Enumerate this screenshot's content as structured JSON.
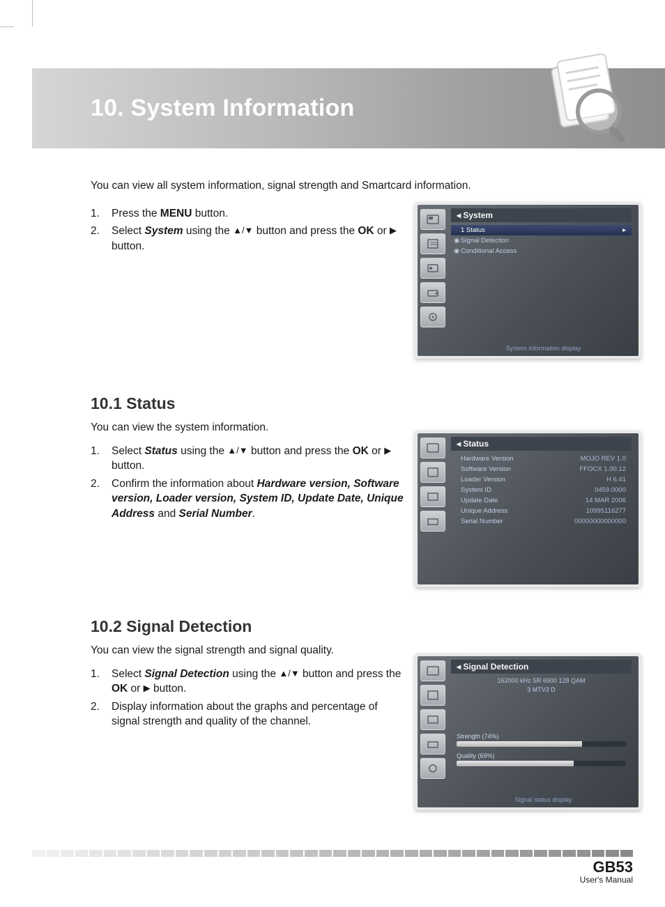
{
  "header": {
    "title": "10. System Information"
  },
  "intro": "You can view all system information, signal strength and Smartcard information.",
  "top_steps": {
    "s1_pre": "Press the ",
    "s1_b": "MENU",
    "s1_post": " button.",
    "s2_pre": "Select ",
    "s2_bi": "System",
    "s2_mid": " using the ",
    "s2_arrows": "▲/▼",
    "s2_mid2": " button and press the ",
    "s2_b": "OK",
    "s2_or": " or ",
    "s2_rarr": "▶",
    "s2_post": " button."
  },
  "sec1": {
    "heading": "10.1 Status",
    "desc": "You can view the system information.",
    "s1_pre": "Select ",
    "s1_bi": "Status",
    "s1_mid": " using the ",
    "s1_arrows": "▲/▼",
    "s1_mid2": " button and press the ",
    "s1_b": "OK",
    "s1_or": " or ",
    "s1_rarr": "▶",
    "s1_post": " button.",
    "s2_pre": "Confirm the information about ",
    "s2_bi": "Hardware version, Software version, Loader version, System ID, Update Date, Unique Address",
    "s2_and": " and ",
    "s2_bi2": "Serial Number",
    "s2_post": "."
  },
  "sec2": {
    "heading": "10.2 Signal Detection",
    "desc": "You can view the signal strength and signal quality.",
    "s1_pre": "Select ",
    "s1_bi": "Signal Detection",
    "s1_mid": " using the ",
    "s1_arrows": "▲/▼",
    "s1_mid2": " button and press the ",
    "s1_b": "OK",
    "s1_or": " or ",
    "s1_rarr": "▶",
    "s1_post": " button.",
    "s2": "Display information about the graphs and percentage of signal strength and quality of the channel."
  },
  "mock1": {
    "title": "System",
    "items": {
      "i1": "1  Status",
      "i2": "Signal Detection",
      "i3": "Conditional Access"
    },
    "footer": "System  information  display"
  },
  "mock2": {
    "title": "Status",
    "rows": {
      "r1l": "Hardware Version",
      "r1v": "MOJO REV 1.0",
      "r2l": "Software Version",
      "r2v": "FFOCX 1.00.12",
      "r3l": "Loader Version",
      "r3v": "H 6.41",
      "r4l": "System ID",
      "r4v": "0459.0000",
      "r5l": "Update Date",
      "r5v": "14 MAR 2006",
      "r6l": "Unique Address",
      "r6v": "10995116277",
      "r7l": "Serial Number",
      "r7v": "00000000000000"
    }
  },
  "mock3": {
    "title": "Signal Detection",
    "ch1": "162000 kHz SR 6900 128 QAM",
    "ch2": "3 MTV3 D",
    "strength_label": "Strength (74%)",
    "quality_label": "Quality (69%)",
    "strength_pct": 74,
    "quality_pct": 69,
    "footer": "Signal  status  display"
  },
  "footer": {
    "page": "GB53",
    "manual": "User's Manual",
    "bar_segments": 42,
    "bar_gradient_start": "#f0f0f0",
    "bar_gradient_end": "#8a8a8a"
  }
}
